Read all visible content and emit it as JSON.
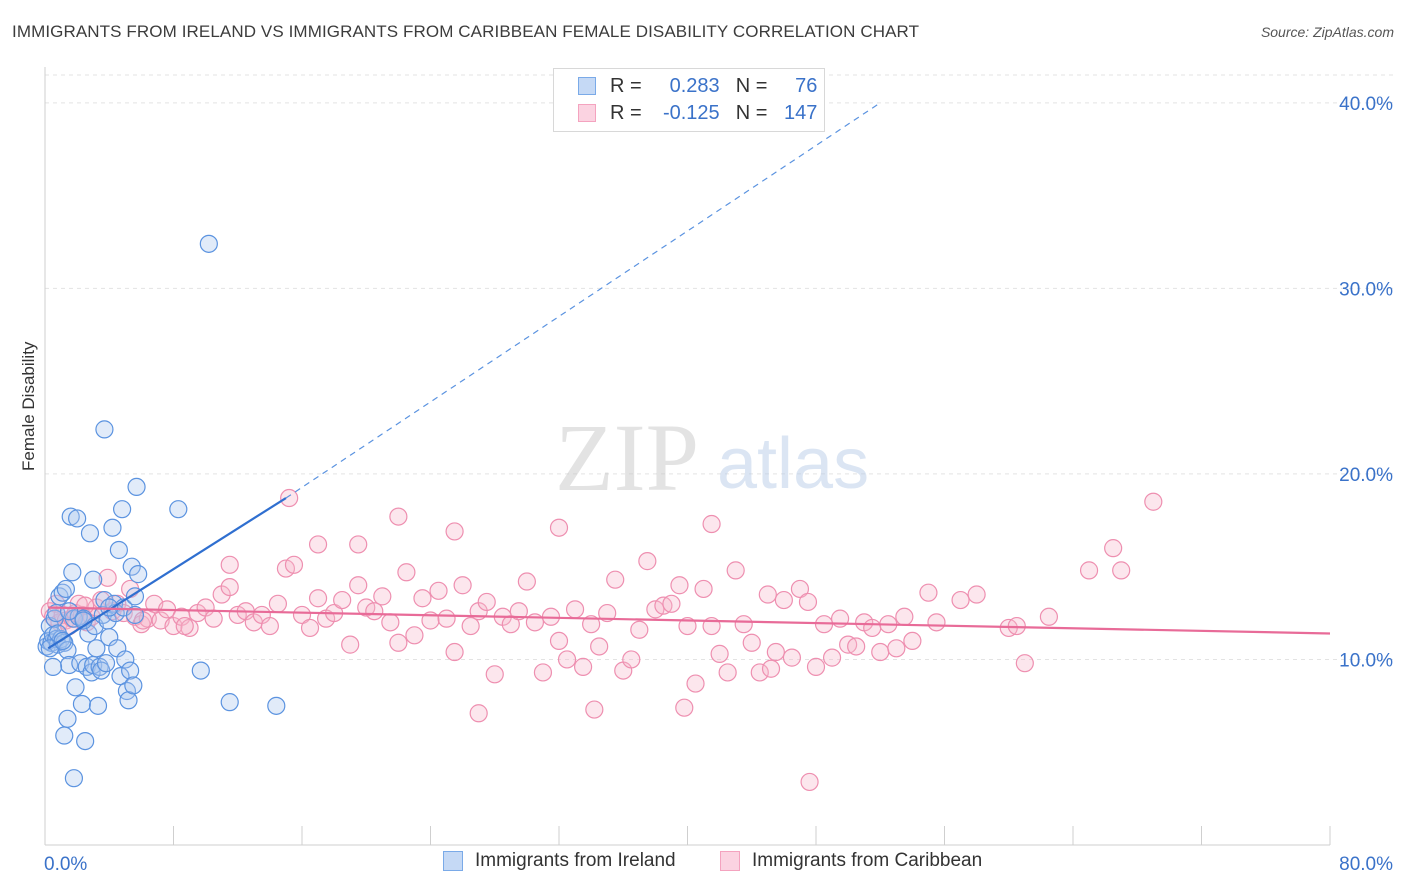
{
  "header": {
    "title": "IMMIGRANTS FROM IRELAND VS IMMIGRANTS FROM CARIBBEAN FEMALE DISABILITY CORRELATION CHART",
    "source": "Source: ZipAtlas.com"
  },
  "watermark": {
    "zip": "ZIP",
    "atlas": "atlas"
  },
  "stats_legend": [
    {
      "r_label": "R =",
      "r_value": "0.283",
      "n_label": "N =",
      "n_value": "76",
      "color": "#7aaae8"
    },
    {
      "r_label": "R =",
      "r_value": "-0.125",
      "n_label": "N =",
      "n_value": "147",
      "color": "#f4a3bf"
    }
  ],
  "chart_data": {
    "type": "scatter",
    "title": "IMMIGRANTS FROM IRELAND VS IMMIGRANTS FROM CARIBBEAN FEMALE DISABILITY CORRELATION CHART",
    "xlabel": "",
    "ylabel": "Female Disability",
    "xlim": [
      0,
      80
    ],
    "ylim": [
      0,
      41.5
    ],
    "x_tick_labels": [
      "0.0%",
      "80.0%"
    ],
    "y_ticks": [
      10,
      20,
      30,
      40
    ],
    "y_tick_labels": [
      "10.0%",
      "20.0%",
      "30.0%",
      "40.0%"
    ],
    "grid": true,
    "legend_position": "top-center",
    "colors": {
      "ireland": "#5b93e0",
      "caribbean": "#ee8fb0",
      "ireland_line": "#2f6fd0",
      "caribbean_line": "#e86b98"
    },
    "series": [
      {
        "name": "Immigrants from Ireland",
        "trend": {
          "x": [
            0.2,
            15
          ],
          "y": [
            10.6,
            18.7
          ],
          "dashed_extension_to": [
            52,
            40.0
          ]
        },
        "points": [
          [
            0.1,
            10.7
          ],
          [
            0.2,
            11.0
          ],
          [
            0.3,
            11.8
          ],
          [
            0.4,
            10.9
          ],
          [
            0.5,
            11.3
          ],
          [
            0.6,
            12.2
          ],
          [
            0.7,
            11.1
          ],
          [
            0.8,
            10.8
          ],
          [
            0.9,
            13.4
          ],
          [
            1.0,
            11.1
          ],
          [
            1.1,
            13.6
          ],
          [
            1.2,
            10.9
          ],
          [
            1.3,
            13.8
          ],
          [
            1.4,
            10.5
          ],
          [
            1.5,
            9.7
          ],
          [
            1.6,
            17.7
          ],
          [
            1.7,
            14.7
          ],
          [
            1.8,
            12.2
          ],
          [
            1.9,
            8.5
          ],
          [
            2.0,
            17.6
          ],
          [
            2.1,
            12.3
          ],
          [
            2.2,
            9.8
          ],
          [
            2.3,
            7.6
          ],
          [
            2.4,
            12.2
          ],
          [
            2.5,
            5.6
          ],
          [
            2.6,
            9.6
          ],
          [
            2.7,
            11.4
          ],
          [
            2.8,
            16.8
          ],
          [
            2.9,
            9.3
          ],
          [
            3.0,
            9.7
          ],
          [
            3.1,
            11.8
          ],
          [
            3.2,
            10.6
          ],
          [
            3.3,
            7.5
          ],
          [
            3.4,
            9.6
          ],
          [
            3.5,
            9.4
          ],
          [
            3.6,
            12.4
          ],
          [
            3.7,
            13.2
          ],
          [
            3.8,
            9.8
          ],
          [
            3.9,
            12.1
          ],
          [
            4.0,
            11.2
          ],
          [
            4.2,
            17.1
          ],
          [
            4.3,
            13.0
          ],
          [
            4.4,
            12.5
          ],
          [
            4.5,
            10.6
          ],
          [
            4.6,
            15.9
          ],
          [
            4.7,
            9.1
          ],
          [
            4.8,
            18.1
          ],
          [
            4.9,
            12.8
          ],
          [
            5.0,
            10.0
          ],
          [
            5.1,
            8.3
          ],
          [
            5.2,
            7.8
          ],
          [
            5.3,
            9.4
          ],
          [
            5.4,
            15.0
          ],
          [
            5.5,
            8.6
          ],
          [
            5.6,
            13.4
          ],
          [
            5.7,
            19.3
          ],
          [
            5.8,
            14.6
          ],
          [
            0.5,
            9.6
          ],
          [
            0.8,
            11.4
          ],
          [
            1.2,
            5.9
          ],
          [
            1.4,
            6.8
          ],
          [
            1.8,
            3.6
          ],
          [
            3.7,
            22.4
          ],
          [
            5.6,
            12.4
          ],
          [
            8.3,
            18.1
          ],
          [
            9.7,
            9.4
          ],
          [
            10.2,
            32.4
          ],
          [
            11.5,
            7.7
          ],
          [
            14.4,
            7.5
          ],
          [
            0.3,
            10.6
          ],
          [
            0.7,
            12.5
          ],
          [
            1.1,
            11.0
          ],
          [
            2.4,
            12.1
          ],
          [
            3.0,
            14.3
          ],
          [
            4.0,
            12.8
          ],
          [
            1.5,
            12.6
          ]
        ]
      },
      {
        "name": "Immigrants from Caribbean",
        "trend": {
          "x": [
            0.2,
            80
          ],
          "y": [
            12.8,
            11.4
          ]
        },
        "points": [
          [
            0.3,
            12.6
          ],
          [
            0.5,
            12.3
          ],
          [
            0.7,
            13.0
          ],
          [
            0.9,
            12.0
          ],
          [
            1.1,
            12.4
          ],
          [
            1.3,
            12.1
          ],
          [
            1.5,
            11.8
          ],
          [
            1.7,
            12.2
          ],
          [
            1.9,
            12.5
          ],
          [
            2.1,
            13.0
          ],
          [
            2.3,
            12.4
          ],
          [
            2.6,
            12.0
          ],
          [
            2.9,
            12.3
          ],
          [
            3.2,
            12.8
          ],
          [
            3.5,
            13.2
          ],
          [
            3.9,
            14.4
          ],
          [
            4.2,
            12.6
          ],
          [
            4.5,
            13.0
          ],
          [
            4.9,
            12.5
          ],
          [
            5.3,
            13.8
          ],
          [
            5.6,
            12.3
          ],
          [
            6.0,
            11.9
          ],
          [
            6.4,
            12.2
          ],
          [
            6.8,
            13.0
          ],
          [
            7.2,
            12.1
          ],
          [
            7.6,
            12.7
          ],
          [
            8.0,
            11.8
          ],
          [
            8.5,
            12.3
          ],
          [
            9.0,
            11.7
          ],
          [
            9.5,
            12.5
          ],
          [
            10.0,
            12.8
          ],
          [
            10.5,
            12.2
          ],
          [
            11.0,
            13.5
          ],
          [
            11.5,
            13.9
          ],
          [
            12.0,
            12.4
          ],
          [
            12.5,
            12.6
          ],
          [
            13.0,
            12.0
          ],
          [
            13.5,
            12.4
          ],
          [
            14.0,
            11.8
          ],
          [
            14.5,
            13.0
          ],
          [
            15.0,
            14.9
          ],
          [
            15.5,
            15.1
          ],
          [
            16.0,
            12.4
          ],
          [
            16.5,
            11.7
          ],
          [
            17.0,
            13.3
          ],
          [
            17.5,
            12.2
          ],
          [
            18.0,
            12.5
          ],
          [
            18.5,
            13.2
          ],
          [
            19.0,
            10.8
          ],
          [
            19.5,
            14.0
          ],
          [
            20.0,
            12.8
          ],
          [
            20.5,
            12.6
          ],
          [
            21.0,
            13.4
          ],
          [
            21.5,
            12.0
          ],
          [
            22.0,
            10.9
          ],
          [
            22.5,
            14.7
          ],
          [
            23.0,
            11.3
          ],
          [
            23.5,
            13.3
          ],
          [
            24.0,
            12.1
          ],
          [
            24.5,
            13.7
          ],
          [
            25.0,
            12.2
          ],
          [
            25.5,
            10.4
          ],
          [
            26.0,
            14.0
          ],
          [
            26.5,
            11.8
          ],
          [
            27.0,
            12.6
          ],
          [
            27.5,
            13.1
          ],
          [
            28.0,
            9.2
          ],
          [
            28.5,
            12.3
          ],
          [
            29.0,
            11.9
          ],
          [
            29.5,
            12.6
          ],
          [
            30.0,
            14.2
          ],
          [
            30.5,
            12.0
          ],
          [
            31.0,
            9.3
          ],
          [
            31.5,
            12.3
          ],
          [
            32.0,
            11.0
          ],
          [
            32.5,
            10.0
          ],
          [
            33.0,
            12.7
          ],
          [
            33.5,
            9.6
          ],
          [
            34.0,
            11.9
          ],
          [
            34.5,
            10.7
          ],
          [
            35.0,
            12.5
          ],
          [
            35.5,
            14.3
          ],
          [
            36.0,
            9.4
          ],
          [
            36.5,
            10.0
          ],
          [
            37.0,
            11.6
          ],
          [
            37.5,
            15.3
          ],
          [
            38.0,
            12.7
          ],
          [
            38.5,
            12.9
          ],
          [
            39.0,
            13.0
          ],
          [
            39.5,
            14.0
          ],
          [
            40.0,
            11.8
          ],
          [
            40.5,
            8.7
          ],
          [
            41.0,
            13.8
          ],
          [
            41.5,
            11.8
          ],
          [
            42.0,
            10.3
          ],
          [
            42.5,
            9.3
          ],
          [
            43.0,
            14.8
          ],
          [
            43.5,
            11.9
          ],
          [
            44.0,
            10.9
          ],
          [
            44.5,
            9.3
          ],
          [
            45.0,
            13.5
          ],
          [
            45.5,
            10.4
          ],
          [
            46.0,
            13.2
          ],
          [
            46.5,
            10.1
          ],
          [
            47.0,
            13.8
          ],
          [
            47.5,
            13.1
          ],
          [
            48.0,
            9.6
          ],
          [
            48.5,
            11.9
          ],
          [
            49.0,
            10.1
          ],
          [
            49.5,
            12.2
          ],
          [
            50.0,
            10.8
          ],
          [
            50.5,
            10.7
          ],
          [
            51.0,
            12.0
          ],
          [
            51.5,
            11.7
          ],
          [
            52.0,
            10.4
          ],
          [
            52.5,
            11.9
          ],
          [
            53.0,
            10.6
          ],
          [
            53.5,
            12.3
          ],
          [
            54.0,
            11.0
          ],
          [
            55.0,
            13.6
          ],
          [
            55.5,
            12.0
          ],
          [
            57.0,
            13.2
          ],
          [
            58.0,
            13.5
          ],
          [
            60.0,
            11.7
          ],
          [
            60.5,
            11.8
          ],
          [
            61.0,
            9.8
          ],
          [
            62.5,
            12.3
          ],
          [
            65.0,
            14.8
          ],
          [
            66.5,
            16.0
          ],
          [
            67.0,
            14.8
          ],
          [
            69.0,
            18.5
          ],
          [
            17.0,
            16.2
          ],
          [
            19.5,
            16.2
          ],
          [
            22.0,
            17.7
          ],
          [
            25.5,
            16.9
          ],
          [
            32.0,
            17.1
          ],
          [
            41.5,
            17.3
          ],
          [
            2.5,
            12.9
          ],
          [
            6.1,
            12.1
          ],
          [
            8.7,
            11.8
          ],
          [
            11.5,
            15.1
          ],
          [
            15.2,
            18.7
          ],
          [
            27.0,
            7.1
          ],
          [
            34.2,
            7.3
          ],
          [
            39.8,
            7.4
          ],
          [
            45.2,
            9.5
          ],
          [
            47.6,
            3.4
          ]
        ]
      }
    ]
  },
  "bottom_legend": [
    {
      "label": "Immigrants from Ireland",
      "color": "#7aaae8"
    },
    {
      "label": "Immigrants from Caribbean",
      "color": "#f4a3bf"
    }
  ]
}
